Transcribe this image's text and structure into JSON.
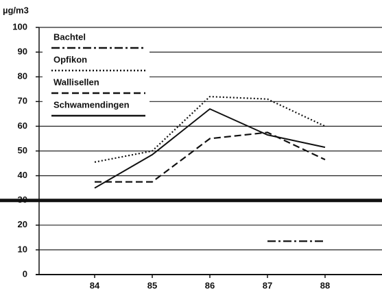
{
  "chart_data": {
    "type": "line",
    "y_label": "µg/m3",
    "categories": [
      "84",
      "85",
      "86",
      "87",
      "88"
    ],
    "ylim": [
      0,
      100
    ],
    "yticks": [
      0,
      10,
      20,
      30,
      40,
      50,
      60,
      70,
      80,
      90,
      100
    ],
    "grid": true,
    "hline": 30,
    "series": [
      {
        "name": "Bachtel",
        "color": "#111111",
        "dash": "dashdot",
        "values": [
          null,
          null,
          null,
          13.5,
          13.5
        ]
      },
      {
        "name": "Opfikon",
        "color": "#111111",
        "dash": "dotted",
        "values": [
          45.5,
          50,
          72,
          71,
          60
        ]
      },
      {
        "name": "Wallisellen",
        "color": "#111111",
        "dash": "dashed",
        "values": [
          37.5,
          37.5,
          55,
          57.5,
          46.5
        ]
      },
      {
        "name": "Schwamendingen",
        "color": "#111111",
        "dash": "solid",
        "values": [
          35,
          48.5,
          67,
          56.5,
          51.5
        ]
      }
    ]
  }
}
